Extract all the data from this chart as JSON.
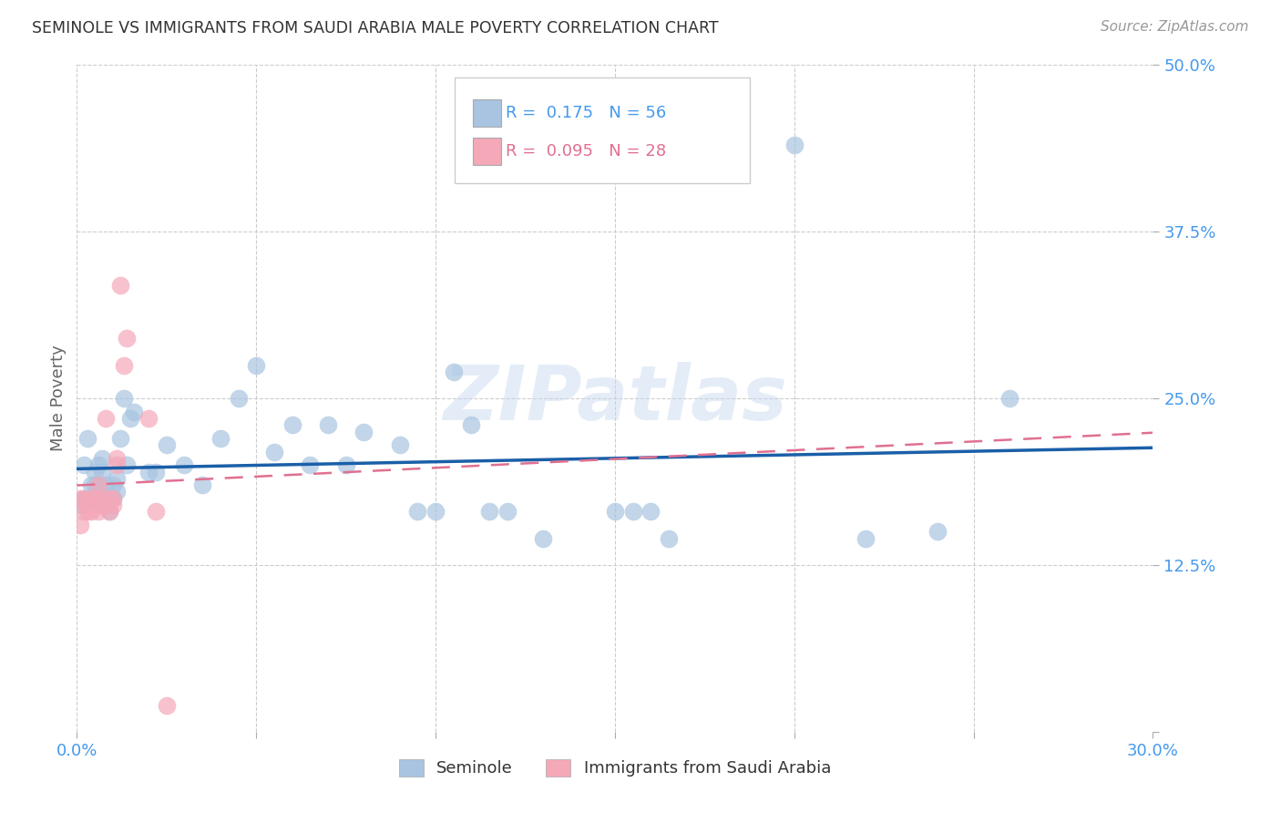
{
  "title": "SEMINOLE VS IMMIGRANTS FROM SAUDI ARABIA MALE POVERTY CORRELATION CHART",
  "source": "Source: ZipAtlas.com",
  "ylabel": "Male Poverty",
  "xlim": [
    0.0,
    0.3
  ],
  "ylim": [
    0.0,
    0.5
  ],
  "xticks": [
    0.0,
    0.05,
    0.1,
    0.15,
    0.2,
    0.25,
    0.3
  ],
  "xticklabels": [
    "0.0%",
    "",
    "",
    "",
    "",
    "",
    "30.0%"
  ],
  "yticks": [
    0.0,
    0.125,
    0.25,
    0.375,
    0.5
  ],
  "yticklabels": [
    "",
    "12.5%",
    "25.0%",
    "37.5%",
    "50.0%"
  ],
  "background_color": "#ffffff",
  "grid_color": "#cccccc",
  "watermark": "ZIPatlas",
  "seminole_color": "#a8c4e0",
  "saudi_color": "#f4a8b8",
  "seminole_line_color": "#1a5fa8",
  "saudi_line_color": "#e07090",
  "legend_R1": "0.175",
  "legend_N1": "56",
  "legend_R2": "0.095",
  "legend_N2": "28",
  "legend_label1": "Seminole",
  "legend_label2": "Immigrants from Saudi Arabia",
  "seminole_x": [
    0.001,
    0.002,
    0.002,
    0.003,
    0.003,
    0.004,
    0.004,
    0.005,
    0.005,
    0.006,
    0.006,
    0.007,
    0.007,
    0.008,
    0.008,
    0.009,
    0.009,
    0.01,
    0.01,
    0.011,
    0.011,
    0.012,
    0.013,
    0.014,
    0.015,
    0.016,
    0.02,
    0.022,
    0.025,
    0.03,
    0.035,
    0.04,
    0.045,
    0.05,
    0.055,
    0.06,
    0.065,
    0.07,
    0.075,
    0.08,
    0.09,
    0.095,
    0.1,
    0.105,
    0.11,
    0.115,
    0.12,
    0.13,
    0.15,
    0.155,
    0.16,
    0.165,
    0.2,
    0.22,
    0.24,
    0.26
  ],
  "seminole_y": [
    0.17,
    0.2,
    0.175,
    0.22,
    0.175,
    0.185,
    0.175,
    0.195,
    0.185,
    0.2,
    0.185,
    0.195,
    0.205,
    0.175,
    0.185,
    0.165,
    0.175,
    0.185,
    0.175,
    0.19,
    0.18,
    0.22,
    0.25,
    0.2,
    0.235,
    0.24,
    0.195,
    0.195,
    0.215,
    0.2,
    0.185,
    0.22,
    0.25,
    0.275,
    0.21,
    0.23,
    0.2,
    0.23,
    0.2,
    0.225,
    0.215,
    0.165,
    0.165,
    0.27,
    0.23,
    0.165,
    0.165,
    0.145,
    0.165,
    0.165,
    0.165,
    0.145,
    0.44,
    0.145,
    0.15,
    0.25
  ],
  "saudi_x": [
    0.001,
    0.001,
    0.002,
    0.002,
    0.003,
    0.003,
    0.004,
    0.004,
    0.005,
    0.005,
    0.006,
    0.006,
    0.007,
    0.007,
    0.008,
    0.008,
    0.009,
    0.009,
    0.01,
    0.01,
    0.011,
    0.011,
    0.012,
    0.013,
    0.014,
    0.02,
    0.022,
    0.025
  ],
  "saudi_y": [
    0.175,
    0.155,
    0.165,
    0.175,
    0.17,
    0.165,
    0.165,
    0.175,
    0.175,
    0.17,
    0.165,
    0.185,
    0.17,
    0.175,
    0.235,
    0.17,
    0.165,
    0.175,
    0.17,
    0.175,
    0.205,
    0.2,
    0.335,
    0.275,
    0.295,
    0.235,
    0.165,
    0.02
  ]
}
